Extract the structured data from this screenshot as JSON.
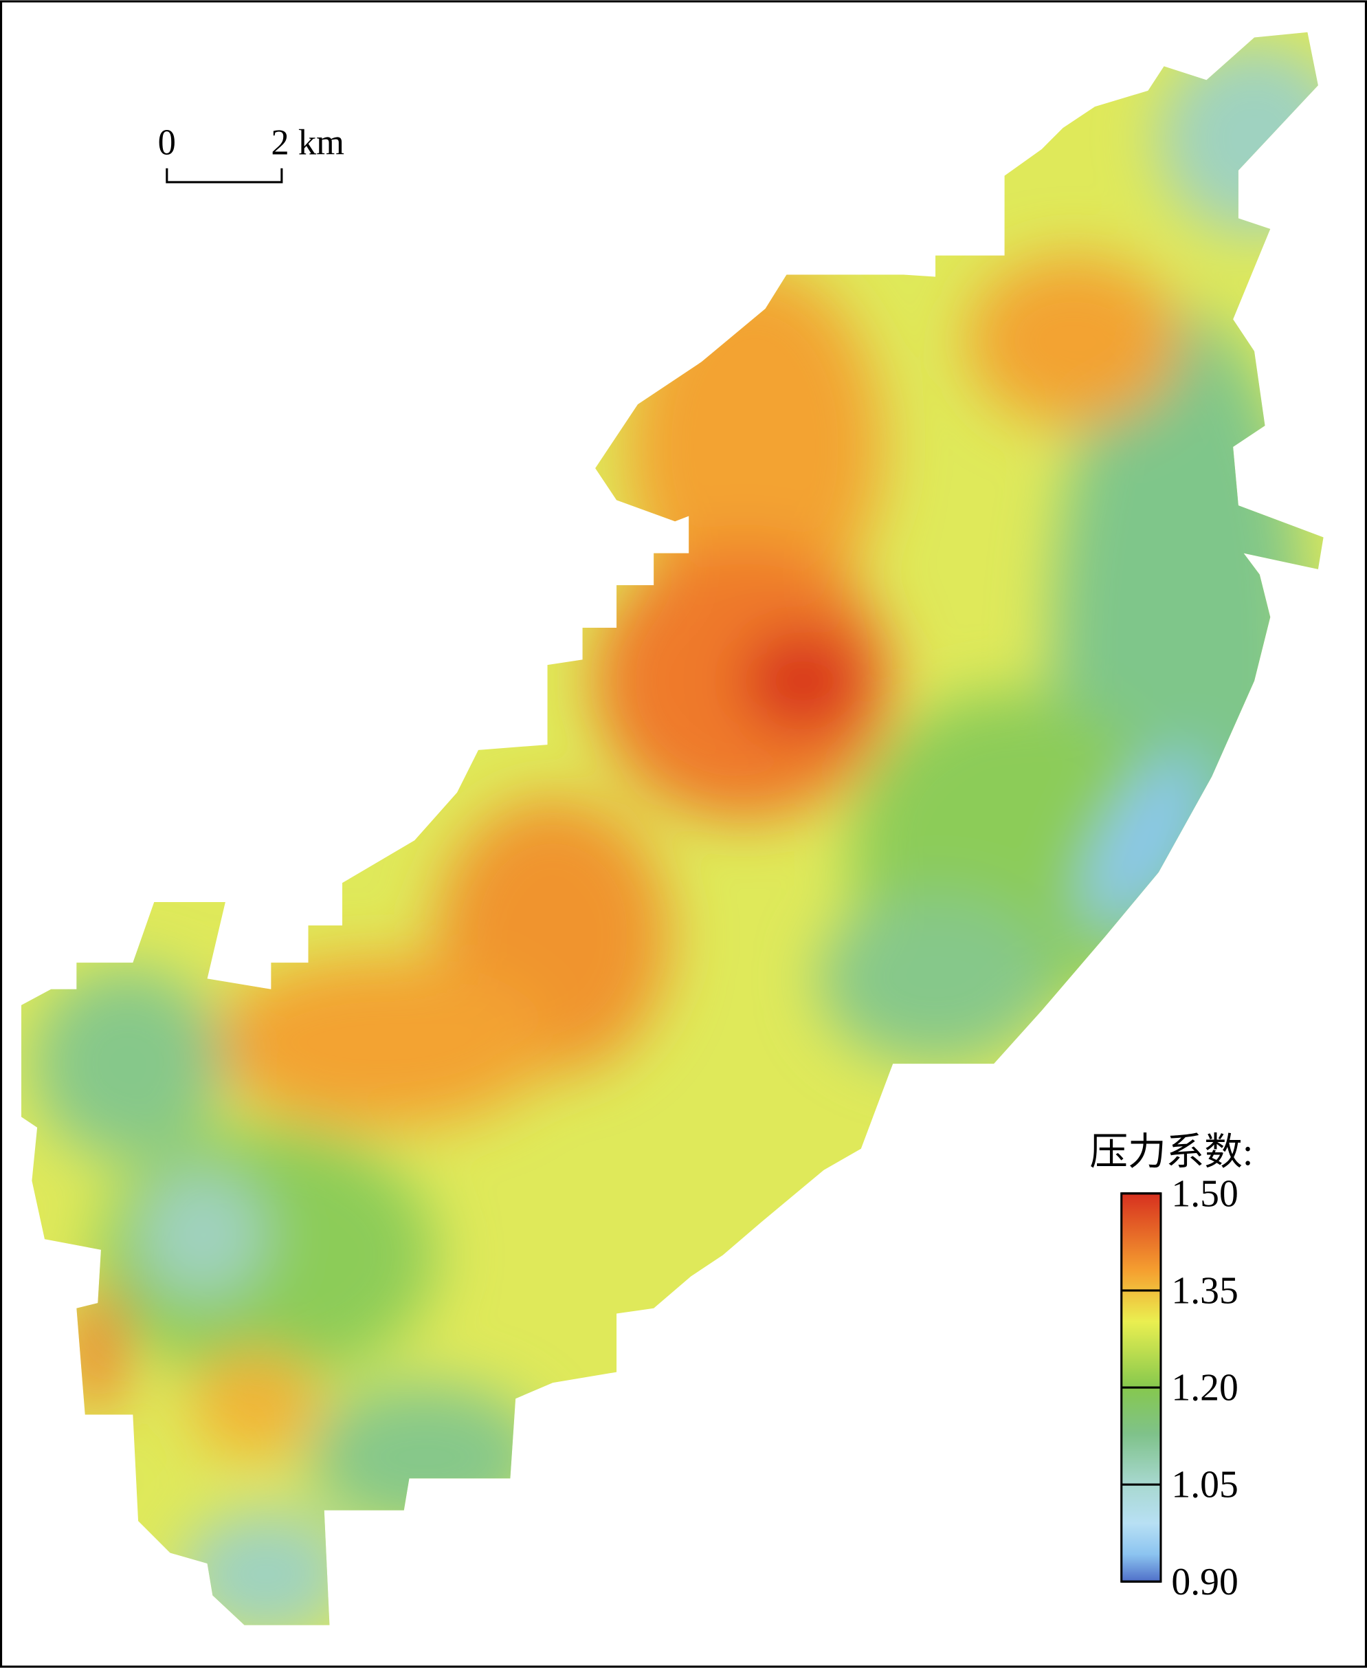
{
  "scale_bar": {
    "start_label": "0",
    "end_label": "2 km"
  },
  "legend": {
    "title": "压力系数:",
    "ticks": [
      {
        "value": 1.5,
        "label": "1.50"
      },
      {
        "value": 1.35,
        "label": "1.35"
      },
      {
        "value": 1.2,
        "label": "1.20"
      },
      {
        "value": 1.05,
        "label": "1.05"
      },
      {
        "value": 0.9,
        "label": "0.90"
      }
    ]
  }
}
